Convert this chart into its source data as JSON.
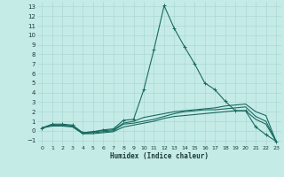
{
  "xlabel": "Humidex (Indice chaleur)",
  "bg_color": "#c5ebe7",
  "grid_color": "#aad8d3",
  "line_color": "#1a6b60",
  "xlim": [
    -0.5,
    23.5
  ],
  "ylim": [
    -1.5,
    13.5
  ],
  "xticks": [
    0,
    1,
    2,
    3,
    4,
    5,
    6,
    7,
    8,
    9,
    10,
    11,
    12,
    13,
    14,
    15,
    16,
    17,
    18,
    19,
    20,
    21,
    22,
    23
  ],
  "yticks": [
    -1,
    0,
    1,
    2,
    3,
    4,
    5,
    6,
    7,
    8,
    9,
    10,
    11,
    12,
    13
  ],
  "lines": [
    {
      "x": [
        0,
        1,
        2,
        3,
        4,
        5,
        6,
        7,
        8,
        9,
        10,
        11,
        12,
        13,
        14,
        15,
        16,
        17,
        18,
        19,
        20,
        21,
        22,
        23
      ],
      "y": [
        0.3,
        0.7,
        0.7,
        0.6,
        -0.2,
        -0.1,
        0.1,
        0.2,
        1.1,
        1.2,
        4.3,
        8.5,
        13.1,
        10.7,
        8.8,
        7.0,
        5.0,
        4.3,
        3.1,
        2.1,
        2.1,
        0.4,
        -0.4,
        -1.1
      ],
      "marker": true
    },
    {
      "x": [
        0,
        1,
        2,
        3,
        4,
        5,
        6,
        7,
        8,
        9,
        10,
        11,
        12,
        13,
        14,
        15,
        16,
        17,
        18,
        19,
        20,
        21,
        22,
        23
      ],
      "y": [
        0.3,
        0.6,
        0.5,
        0.5,
        -0.2,
        -0.1,
        0.0,
        0.1,
        0.8,
        1.0,
        1.4,
        1.6,
        1.8,
        2.0,
        2.1,
        2.2,
        2.3,
        2.4,
        2.6,
        2.7,
        2.8,
        2.0,
        1.6,
        -1.1
      ],
      "marker": false
    },
    {
      "x": [
        0,
        1,
        2,
        3,
        4,
        5,
        6,
        7,
        8,
        9,
        10,
        11,
        12,
        13,
        14,
        15,
        16,
        17,
        18,
        19,
        20,
        21,
        22,
        23
      ],
      "y": [
        0.3,
        0.6,
        0.6,
        0.5,
        -0.3,
        -0.2,
        -0.1,
        0.0,
        0.7,
        0.8,
        1.0,
        1.2,
        1.5,
        1.8,
        2.0,
        2.1,
        2.2,
        2.2,
        2.3,
        2.4,
        2.5,
        1.5,
        1.0,
        -1.1
      ],
      "marker": false
    },
    {
      "x": [
        0,
        1,
        2,
        3,
        4,
        5,
        6,
        7,
        8,
        9,
        10,
        11,
        12,
        13,
        14,
        15,
        16,
        17,
        18,
        19,
        20,
        21,
        22,
        23
      ],
      "y": [
        0.3,
        0.5,
        0.5,
        0.4,
        -0.3,
        -0.3,
        -0.2,
        -0.1,
        0.4,
        0.6,
        0.8,
        1.0,
        1.3,
        1.5,
        1.6,
        1.7,
        1.8,
        1.9,
        2.0,
        2.1,
        2.1,
        1.2,
        0.7,
        -1.1
      ],
      "marker": false
    }
  ]
}
